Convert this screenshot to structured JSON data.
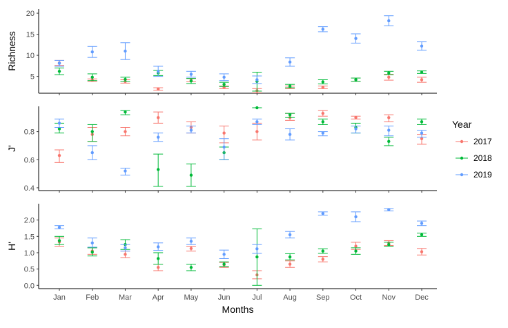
{
  "chart_data": {
    "type": "scatter",
    "xlabel": "Months",
    "categories": [
      "Jan",
      "Feb",
      "Mar",
      "Apr",
      "May",
      "Jun",
      "Jul",
      "Aug",
      "Sep",
      "Oct",
      "Nov",
      "Dec"
    ],
    "legend": {
      "title": "Year",
      "placement": "right",
      "entries": [
        {
          "name": "2017",
          "color": "#F8766D"
        },
        {
          "name": "2018",
          "color": "#00BA38"
        },
        {
          "name": "2019",
          "color": "#619CFF"
        }
      ]
    },
    "grid": false,
    "panels": [
      {
        "ylabel": "Richness",
        "ylim": [
          1,
          21
        ],
        "yticks": [
          5,
          10,
          15,
          20
        ],
        "series": [
          {
            "name": "2017",
            "points": [
              [
                8.2,
                7.6,
                8.8
              ],
              [
                4.1,
                3.8,
                4.4
              ],
              [
                3.8,
                3.4,
                4.2
              ],
              [
                2.0,
                1.7,
                2.3
              ],
              [
                4.1,
                3.7,
                4.5
              ],
              [
                2.4,
                2.1,
                2.7
              ],
              [
                1.6,
                1.1,
                2.1
              ],
              [
                2.4,
                2.1,
                2.7
              ],
              [
                2.4,
                2.1,
                2.7
              ],
              [
                4.2,
                3.8,
                4.6
              ],
              [
                4.8,
                4.1,
                5.5
              ],
              [
                4.2,
                3.6,
                4.8
              ]
            ]
          },
          {
            "name": "2018",
            "points": [
              [
                6.2,
                5.4,
                7.0
              ],
              [
                4.8,
                4.0,
                5.6
              ],
              [
                4.3,
                3.8,
                4.8
              ],
              [
                5.8,
                5.2,
                6.4
              ],
              [
                3.9,
                3.3,
                4.5
              ],
              [
                3.1,
                2.6,
                3.6
              ],
              [
                3.8,
                1.5,
                6.0
              ],
              [
                2.7,
                2.3,
                3.1
              ],
              [
                3.7,
                3.2,
                4.2
              ],
              [
                4.2,
                3.8,
                4.6
              ],
              [
                5.8,
                5.4,
                6.2
              ],
              [
                6.0,
                5.7,
                6.3
              ]
            ]
          },
          {
            "name": "2019",
            "points": [
              [
                8.1,
                7.4,
                8.8
              ],
              [
                10.8,
                9.5,
                12.1
              ],
              [
                11.0,
                9.0,
                13.0
              ],
              [
                6.2,
                5.0,
                7.4
              ],
              [
                5.5,
                4.8,
                6.2
              ],
              [
                4.8,
                4.0,
                5.6
              ],
              [
                4.2,
                3.3,
                5.1
              ],
              [
                8.4,
                7.4,
                9.4
              ],
              [
                16.2,
                15.6,
                16.8
              ],
              [
                14.0,
                12.9,
                15.1
              ],
              [
                18.2,
                17.0,
                19.4
              ],
              [
                12.2,
                11.2,
                13.2
              ]
            ]
          }
        ]
      },
      {
        "ylabel": "J'",
        "ylim": [
          0.38,
          0.98
        ],
        "yticks": [
          0.4,
          0.6,
          0.8
        ],
        "yticklabels": [
          "0.4",
          "0.6",
          "0.8"
        ],
        "series": [
          {
            "name": "2017",
            "points": [
              [
                0.63,
                0.58,
                0.67
              ],
              [
                0.78,
                0.73,
                0.83
              ],
              [
                0.8,
                0.77,
                0.83
              ],
              [
                0.9,
                0.86,
                0.94
              ],
              [
                0.83,
                0.79,
                0.87
              ],
              [
                0.79,
                0.72,
                0.84
              ],
              [
                0.8,
                0.74,
                0.86
              ],
              [
                0.9,
                0.88,
                0.93
              ],
              [
                0.93,
                0.91,
                0.95
              ],
              [
                0.9,
                0.89,
                0.91
              ],
              [
                0.9,
                0.87,
                0.92
              ],
              [
                0.75,
                0.71,
                0.78
              ]
            ]
          },
          {
            "name": "2018",
            "points": [
              [
                0.82,
                0.79,
                0.86
              ],
              [
                0.8,
                0.73,
                0.85
              ],
              [
                0.94,
                0.92,
                0.95
              ],
              [
                0.53,
                0.41,
                0.64
              ],
              [
                0.49,
                0.41,
                0.57
              ],
              [
                0.65,
                0.6,
                0.69
              ],
              [
                0.97,
                0.97,
                0.97
              ],
              [
                0.92,
                0.9,
                0.93
              ],
              [
                0.87,
                0.85,
                0.89
              ],
              [
                0.83,
                0.79,
                0.86
              ],
              [
                0.73,
                0.7,
                0.76
              ],
              [
                0.87,
                0.85,
                0.89
              ]
            ]
          },
          {
            "name": "2019",
            "points": [
              [
                0.86,
                0.83,
                0.89
              ],
              [
                0.65,
                0.6,
                0.7
              ],
              [
                0.52,
                0.49,
                0.54
              ],
              [
                0.76,
                0.73,
                0.79
              ],
              [
                0.81,
                0.79,
                0.84
              ],
              [
                0.69,
                0.6,
                0.75
              ],
              [
                0.87,
                0.85,
                0.89
              ],
              [
                0.78,
                0.74,
                0.82
              ],
              [
                0.79,
                0.77,
                0.8
              ],
              [
                0.82,
                0.79,
                0.84
              ],
              [
                0.81,
                0.77,
                0.84
              ],
              [
                0.79,
                0.76,
                0.81
              ]
            ]
          }
        ]
      },
      {
        "ylabel": "H'",
        "ylim": [
          -0.1,
          2.5
        ],
        "yticks": [
          0.0,
          0.5,
          1.0,
          1.5,
          2.0
        ],
        "yticklabels": [
          "0.0",
          "0.5",
          "1.0",
          "1.5",
          "2.0"
        ],
        "series": [
          {
            "name": "2017",
            "points": [
              [
                1.33,
                1.2,
                1.45
              ],
              [
                1.05,
                0.95,
                1.15
              ],
              [
                0.95,
                0.85,
                1.05
              ],
              [
                0.55,
                0.45,
                0.65
              ],
              [
                1.13,
                1.05,
                1.2
              ],
              [
                0.63,
                0.55,
                0.7
              ],
              [
                0.32,
                0.2,
                0.45
              ],
              [
                0.65,
                0.55,
                0.75
              ],
              [
                0.8,
                0.72,
                0.88
              ],
              [
                1.2,
                1.1,
                1.32
              ],
              [
                1.3,
                1.22,
                1.37
              ],
              [
                1.03,
                0.93,
                1.13
              ]
            ]
          },
          {
            "name": "2018",
            "points": [
              [
                1.37,
                1.25,
                1.5
              ],
              [
                1.02,
                0.9,
                1.15
              ],
              [
                1.25,
                1.1,
                1.4
              ],
              [
                0.82,
                0.65,
                1.0
              ],
              [
                0.55,
                0.45,
                0.65
              ],
              [
                0.65,
                0.58,
                0.72
              ],
              [
                0.87,
                0.0,
                1.73
              ],
              [
                0.87,
                0.78,
                0.97
              ],
              [
                1.05,
                0.98,
                1.12
              ],
              [
                1.05,
                0.95,
                1.15
              ],
              [
                1.25,
                1.2,
                1.32
              ],
              [
                1.55,
                1.5,
                1.6
              ]
            ]
          },
          {
            "name": "2019",
            "points": [
              [
                1.78,
                1.73,
                1.83
              ],
              [
                1.3,
                1.17,
                1.45
              ],
              [
                1.15,
                1.05,
                1.25
              ],
              [
                1.18,
                1.07,
                1.3
              ],
              [
                1.35,
                1.25,
                1.45
              ],
              [
                0.95,
                0.82,
                1.08
              ],
              [
                1.12,
                0.98,
                1.25
              ],
              [
                1.55,
                1.45,
                1.65
              ],
              [
                2.2,
                2.15,
                2.25
              ],
              [
                2.1,
                1.95,
                2.25
              ],
              [
                2.32,
                2.28,
                2.35
              ],
              [
                1.9,
                1.83,
                1.97
              ]
            ]
          }
        ]
      }
    ]
  }
}
